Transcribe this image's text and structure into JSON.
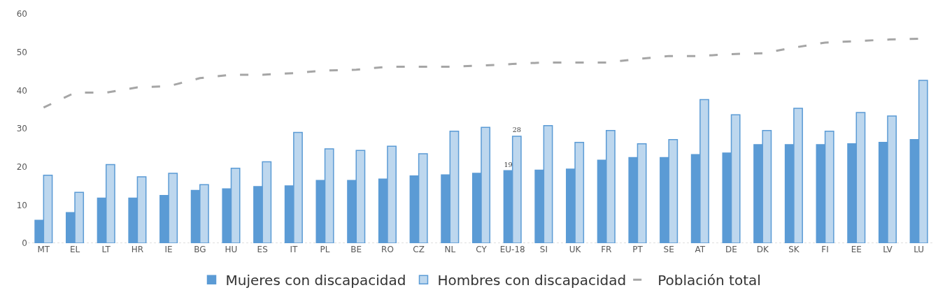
{
  "chart_data": {
    "type": "bar",
    "categories": [
      "MT",
      "EL",
      "LT",
      "HR",
      "IE",
      "BG",
      "HU",
      "ES",
      "IT",
      "PL",
      "BE",
      "RO",
      "CZ",
      "NL",
      "CY",
      "EU-18",
      "SI",
      "UK",
      "FR",
      "PT",
      "SE",
      "AT",
      "DE",
      "DK",
      "SK",
      "FI",
      "EE",
      "LV",
      "LU"
    ],
    "series": [
      {
        "name": "Mujeres con discapacidad",
        "color": "#5b9bd5",
        "values": [
          6.0,
          8.0,
          11.8,
          11.8,
          12.5,
          13.8,
          14.2,
          14.8,
          15.0,
          16.4,
          16.4,
          16.8,
          17.6,
          17.9,
          18.3,
          19,
          19.1,
          19.4,
          21.7,
          22.4,
          22.4,
          23.2,
          23.6,
          25.8,
          25.8,
          25.8,
          26.0,
          26.4,
          27.1
        ],
        "value_labels": [
          null,
          null,
          null,
          null,
          null,
          null,
          null,
          null,
          null,
          null,
          null,
          null,
          null,
          null,
          null,
          "19",
          null,
          null,
          null,
          null,
          null,
          null,
          null,
          null,
          null,
          null,
          null,
          null,
          null
        ]
      },
      {
        "name": "Hombres con discapacidad",
        "color": "#bdd7ee",
        "values": [
          17.8,
          13.3,
          20.6,
          17.4,
          18.3,
          15.3,
          19.6,
          21.3,
          29.0,
          24.7,
          24.3,
          25.4,
          23.4,
          29.3,
          30.3,
          28,
          30.8,
          26.4,
          29.5,
          26.0,
          27.1,
          37.6,
          33.6,
          29.5,
          35.3,
          29.3,
          34.2,
          33.3,
          42.6
        ],
        "value_labels": [
          null,
          null,
          null,
          null,
          null,
          null,
          null,
          null,
          null,
          null,
          null,
          null,
          null,
          null,
          null,
          "28",
          null,
          null,
          null,
          null,
          null,
          null,
          null,
          null,
          null,
          null,
          null,
          null,
          null
        ]
      },
      {
        "name": "Población total",
        "type": "line",
        "line_style": "dashed",
        "color": "#a6a6a6",
        "values": [
          35.5,
          39.4,
          39.4,
          40.8,
          41.1,
          43.2,
          44.1,
          44.1,
          44.5,
          45.2,
          45.4,
          46.2,
          46.2,
          46.2,
          46.5,
          46.9,
          47.3,
          47.3,
          47.3,
          48.2,
          49.0,
          49.0,
          49.5,
          49.7,
          51.2,
          52.5,
          52.9,
          53.3,
          53.5
        ]
      }
    ],
    "ylim": [
      0,
      60
    ],
    "yticks": [
      0,
      10,
      20,
      30,
      40,
      50,
      60
    ],
    "legend": "bottom"
  }
}
